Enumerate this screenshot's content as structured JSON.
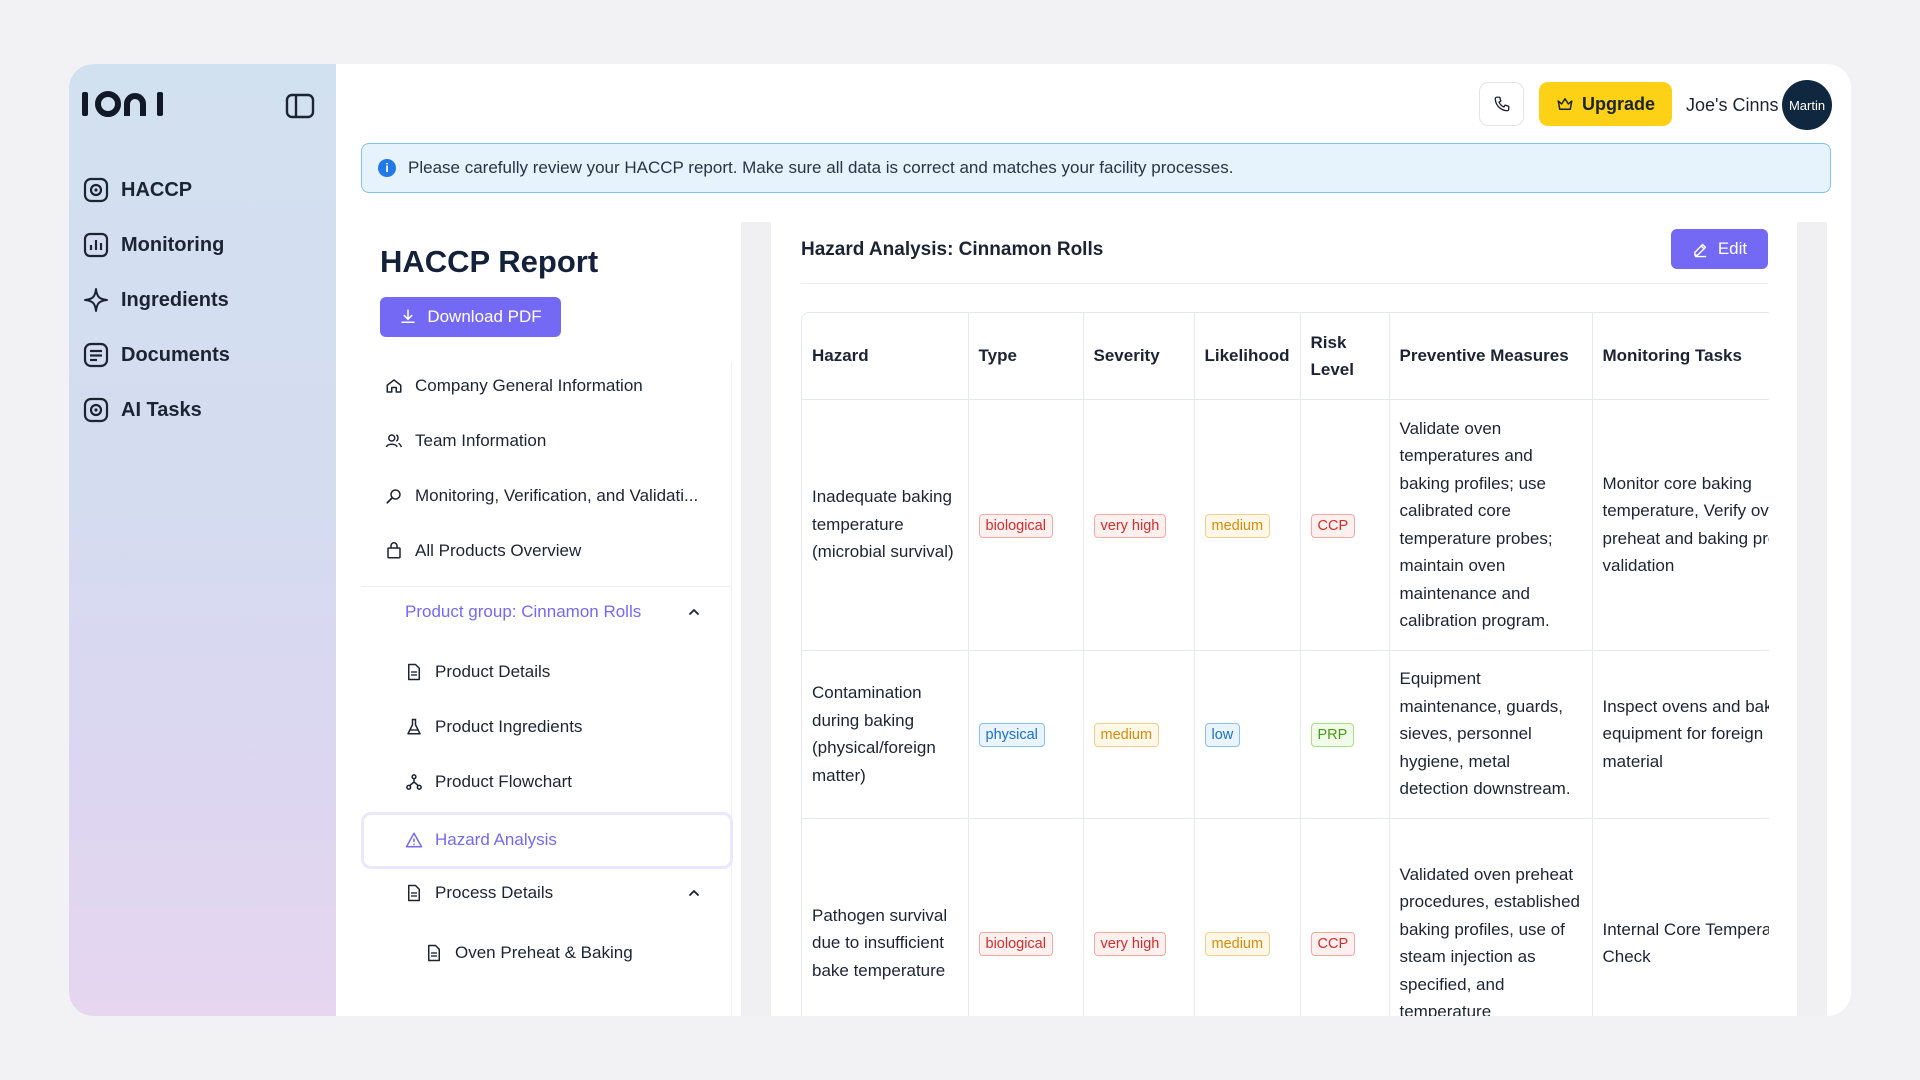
{
  "brand": {
    "logo_text": "IONI"
  },
  "nav": {
    "items": [
      {
        "label": "HACCP",
        "icon": "haccp-icon"
      },
      {
        "label": "Monitoring",
        "icon": "chart-icon"
      },
      {
        "label": "Ingredients",
        "icon": "sparkle-icon"
      },
      {
        "label": "Documents",
        "icon": "documents-icon"
      },
      {
        "label": "AI Tasks",
        "icon": "ai-tasks-icon"
      }
    ]
  },
  "topbar": {
    "upgrade_label": "Upgrade",
    "company_name": "Joe's Cinns",
    "avatar_text": "Martin"
  },
  "alert": {
    "message": "Please carefully review your HACCP report. Make sure all data is correct and matches your facility processes."
  },
  "report": {
    "title": "HACCP Report",
    "download_label": "Download PDF",
    "toc": [
      {
        "label": "Company General Information",
        "icon": "home-icon"
      },
      {
        "label": "Team Information",
        "icon": "team-icon"
      },
      {
        "label": "Monitoring, Verification, and Validati...",
        "icon": "magnifier-icon"
      },
      {
        "label": "All Products Overview",
        "icon": "bag-icon"
      }
    ],
    "product_group_label": "Product group: Cinnamon Rolls",
    "product_items": [
      {
        "label": "Product Details",
        "icon": "file-icon"
      },
      {
        "label": "Product Ingredients",
        "icon": "flask-icon"
      },
      {
        "label": "Product Flowchart",
        "icon": "flowchart-icon"
      },
      {
        "label": "Hazard Analysis",
        "icon": "warning-icon"
      },
      {
        "label": "Process Details",
        "icon": "file-icon"
      }
    ],
    "process_items": [
      {
        "label": "Oven Preheat & Baking",
        "icon": "file-icon"
      }
    ]
  },
  "panel": {
    "title": "Hazard Analysis: Cinnamon Rolls",
    "edit_label": "Edit",
    "columns": [
      "Hazard",
      "Type",
      "Severity",
      "Likelihood",
      "Risk Level",
      "Preventive Measures",
      "Monitoring Tasks"
    ],
    "rows": [
      {
        "hazard": "Inadequate baking temperature (microbial survival)",
        "type": "biological",
        "severity": "very high",
        "likelihood": "medium",
        "risk": "CCP",
        "measures": "Validate oven temperatures and baking profiles; use calibrated core temperature probes; maintain oven maintenance and calibration program.",
        "monitoring": "Monitor core baking temperature, Verify oven preheat and baking profile validation"
      },
      {
        "hazard": "Contamination during baking (physical/foreign matter)",
        "type": "physical",
        "severity": "medium",
        "likelihood": "low",
        "risk": "PRP",
        "measures": "Equipment maintenance, guards, sieves, personnel hygiene, metal detection downstream.",
        "monitoring": "Inspect ovens and baking equipment for foreign material"
      },
      {
        "hazard": "Pathogen survival due to insufficient bake temperature",
        "type": "biological",
        "severity": "very high",
        "likelihood": "medium",
        "risk": "CCP",
        "measures": "Validated oven preheat procedures, established baking profiles, use of steam injection as specified, and temperature",
        "monitoring": "Internal Core Temperature Check"
      }
    ]
  }
}
